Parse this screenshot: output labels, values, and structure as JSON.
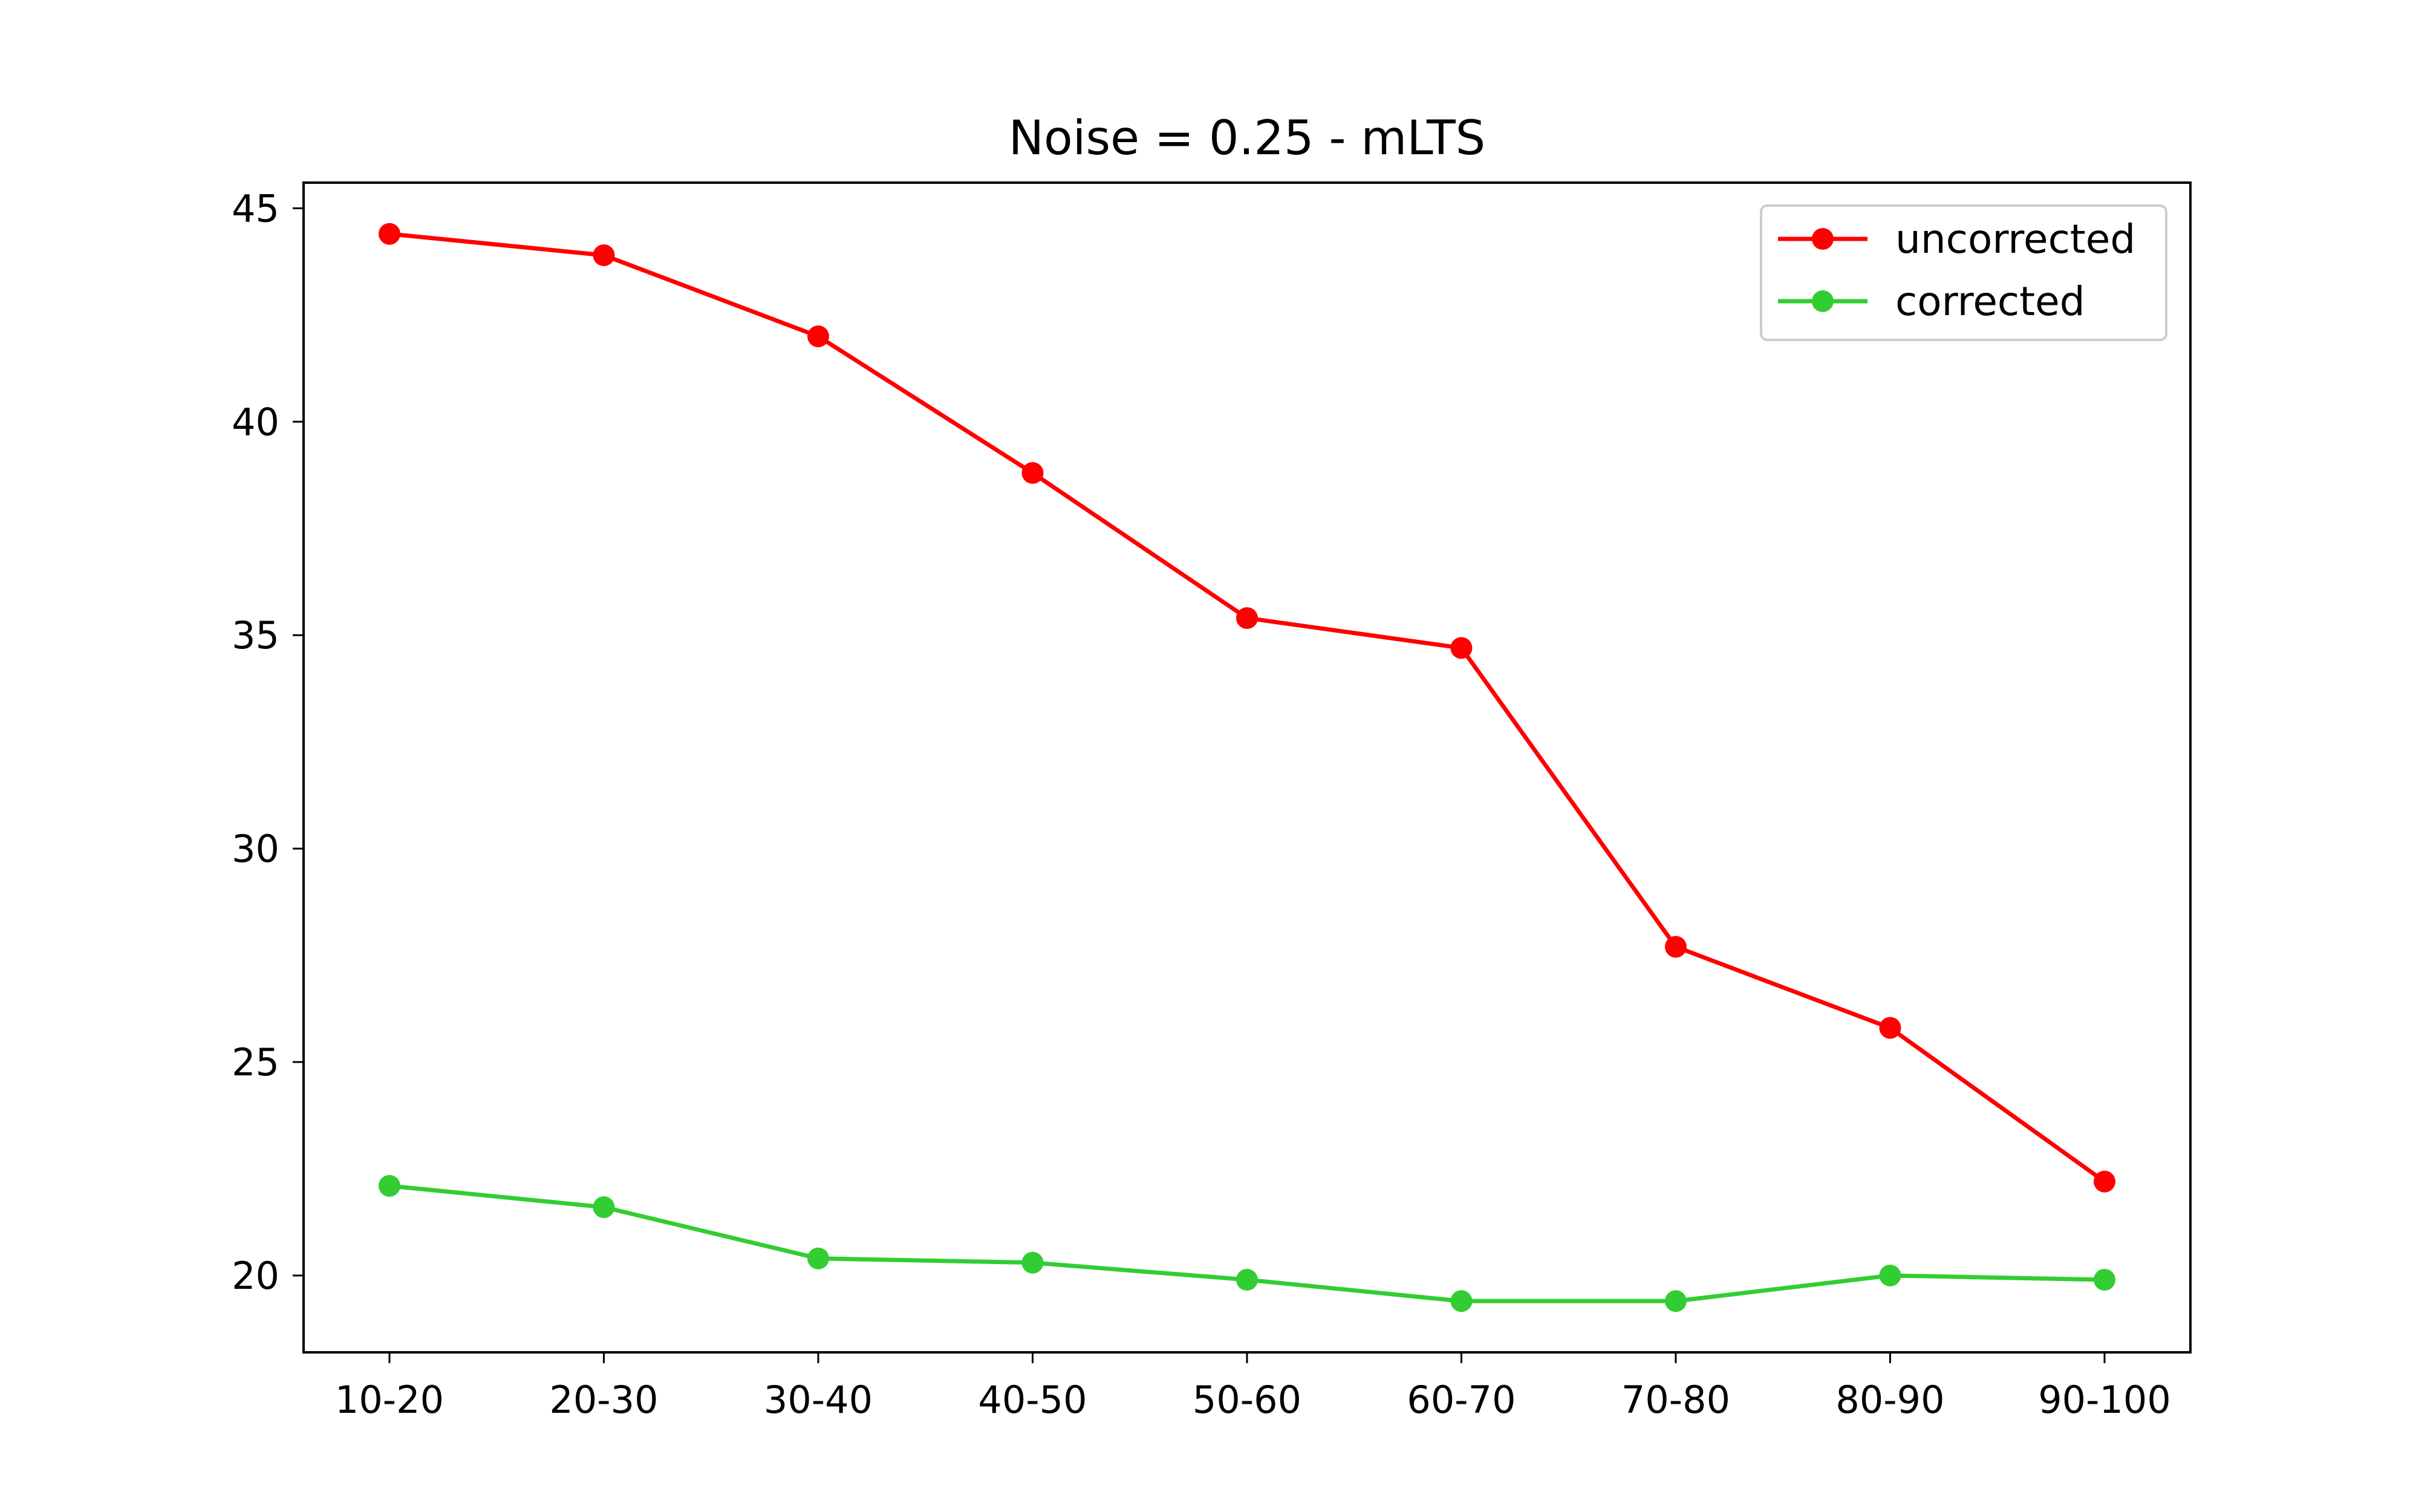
{
  "chart_data": {
    "type": "line",
    "title": "Noise = 0.25 - mLTS",
    "xlabel": "",
    "ylabel": "",
    "categories": [
      "10-20",
      "20-30",
      "30-40",
      "40-50",
      "50-60",
      "60-70",
      "70-80",
      "80-90",
      "90-100"
    ],
    "ylim": [
      18.2,
      45.6
    ],
    "yticks": [
      20,
      25,
      30,
      35,
      40,
      45
    ],
    "grid": false,
    "legend_position": "top-right",
    "series": [
      {
        "name": "uncorrected",
        "color": "#ff0000",
        "marker": "circle",
        "values": [
          44.4,
          43.9,
          42.0,
          38.8,
          35.4,
          34.7,
          27.7,
          25.8,
          22.2
        ]
      },
      {
        "name": "corrected",
        "color": "#32cd32",
        "marker": "circle",
        "values": [
          22.1,
          21.6,
          20.4,
          20.3,
          19.9,
          19.4,
          19.4,
          20.0,
          19.9
        ]
      }
    ]
  }
}
